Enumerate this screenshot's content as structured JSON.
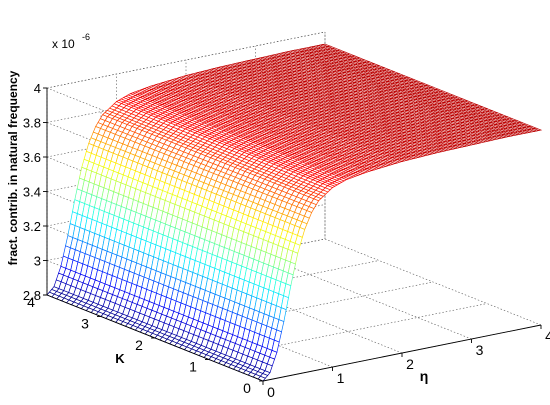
{
  "chart_data": {
    "type": "surface",
    "title": "",
    "zlabel": "fract. contrib. in natural frequency",
    "xlabel": "η",
    "ylabel": "K",
    "z_exponent_label": "x 10",
    "z_exponent_power": "-6",
    "eta_range": [
      0,
      4
    ],
    "K_range": [
      0,
      4
    ],
    "z_range": [
      2.8,
      4.0
    ],
    "eta_ticks": [
      "0",
      "1",
      "2",
      "3",
      "4"
    ],
    "K_ticks": [
      "0",
      "1",
      "2",
      "3",
      "4"
    ],
    "z_ticks": [
      "2.8",
      "3",
      "3.2",
      "3.4",
      "3.6",
      "3.8",
      "4"
    ],
    "grid": true,
    "colormap": "jet",
    "surface_profile": {
      "eta": [
        0.0,
        0.1,
        0.2,
        0.3,
        0.4,
        0.5,
        0.6,
        0.7,
        0.8,
        1.0,
        1.2,
        1.5,
        2.0,
        2.5,
        3.0,
        3.5,
        4.0
      ],
      "value_e6": [
        2.8,
        2.84,
        2.95,
        3.12,
        3.32,
        3.5,
        3.63,
        3.72,
        3.78,
        3.84,
        3.87,
        3.89,
        3.91,
        3.92,
        3.925,
        3.93,
        3.93
      ]
    }
  }
}
